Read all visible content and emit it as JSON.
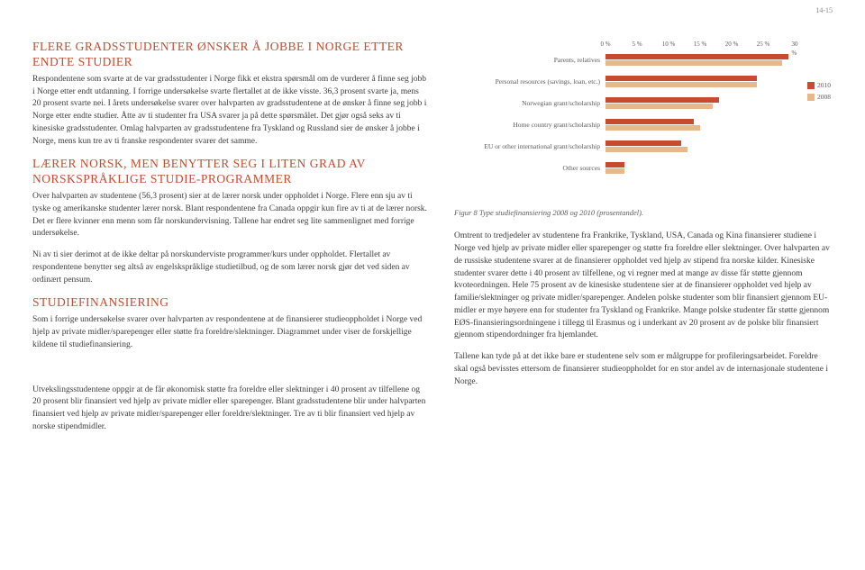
{
  "pageNumber": "14-15",
  "left": {
    "h1": "FLERE GRADSSTUDENTER ØNSKER Å JOBBE I NORGE ETTER ENDTE STUDIER",
    "p1": "Respondentene som svarte at de var gradsstudenter i Norge fikk et ekstra spørsmål om de vurderer å finne seg jobb i Norge etter endt utdanning. I forrige undersøkelse svarte flertallet at de ikke visste. 36,3 prosent svarte ja, mens 20 prosent svarte nei. I årets undersøkelse svarer over halvparten av gradsstudentene at de ønsker å finne seg jobb i Norge etter endte studier. Åtte av ti studenter fra USA svarer ja på dette spørsmålet. Det gjør også seks av ti kinesiske gradsstudenter. Omlag halvparten av gradsstudentene fra Tyskland og Russland sier de ønsker å jobbe i Norge, mens kun tre av ti franske respondenter svarer det samme.",
    "h2": "LÆRER NORSK, MEN BENYTTER SEG I LITEN GRAD AV NORSKSPRÅKLIGE STUDIE-PROGRAMMER",
    "p2": "Over halvparten av studentene (56,3 prosent) sier at de lærer norsk under oppholdet i Norge. Flere enn sju av ti tyske og amerikanske studenter lærer norsk. Blant respondentene fra Canada oppgir kun fire av ti at de lærer norsk. Det er flere kvinner enn menn som får norskundervisning. Tallene har endret seg lite sammenlignet med forrige undersøkelse.",
    "p3": "Ni av ti sier derimot at de ikke deltar på norskunderviste programmer/kurs under oppholdet. Flertallet av respondentene benytter seg altså av engelskspråklige studietilbud, og de som lærer norsk gjør det ved siden av ordinært pensum.",
    "h3": "STUDIEFINANSIERING",
    "p4": "Som i forrige undersøkelse svarer over halvparten av respondentene at de finansierer studieoppholdet i Norge ved hjelp av private midler/sparepenger eller støtte fra foreldre/slektninger. Diagrammet under viser de forskjellige kildene til studiefinansiering.",
    "p5": "Utvekslingsstudentene oppgir at de får økonomisk støtte fra foreldre eller slektninger i 40 prosent av tilfellene og 20 prosent blir finansiert ved hjelp av private midler eller sparepenger. Blant gradsstudentene blir under halvparten finansiert ved hjelp av private midler/sparepenger eller foreldre/slektninger. Tre av ti blir finansiert ved hjelp av norske stipendmidler."
  },
  "chart": {
    "type": "bar",
    "xmax": 30,
    "xtick": 5,
    "xlabels": [
      "0 %",
      "5 %",
      "10 %",
      "15 %",
      "20 %",
      "25 %",
      "30 %"
    ],
    "color2010": "#c94a2e",
    "color2008": "#e8b88a",
    "bgcolor": "#ffffff",
    "categories": [
      {
        "label": "Parents, relatives",
        "v2010": 29,
        "v2008": 28
      },
      {
        "label": "Personal resources (savings, loan, etc.)",
        "v2010": 24,
        "v2008": 24
      },
      {
        "label": "Norwegian grant/scholarship",
        "v2010": 18,
        "v2008": 17
      },
      {
        "label": "Home country grant/scholarship",
        "v2010": 14,
        "v2008": 15
      },
      {
        "label": "EU or other international grant/scholarship",
        "v2010": 12,
        "v2008": 13
      },
      {
        "label": "Other sources",
        "v2010": 3,
        "v2008": 3
      }
    ],
    "legend": [
      {
        "label": "2010",
        "color": "#c94a2e"
      },
      {
        "label": "2008",
        "color": "#e8b88a"
      }
    ],
    "caption": "Figur 8 Type studiefinansiering 2008 og 2010 (prosentandel)."
  },
  "right": {
    "p1": "Omtrent to tredjedeler av studentene fra Frankrike, Tyskland, USA, Canada og Kina finansierer studiene i Norge ved hjelp av private midler eller sparepenger og støtte fra foreldre eller slektninger. Over halvparten av de russiske studentene svarer at de finansierer oppholdet ved hjelp av stipend fra norske kilder. Kinesiske studenter svarer dette i 40 prosent av tilfellene, og vi regner med at mange av disse får støtte gjennom kvoteordningen. Hele 75 prosent av de kinesiske studentene sier at de finansierer oppholdet ved hjelp av familie/slektninger og private midler/sparepenger. Andelen polske studenter som blir finansiert gjennom EU-midler er mye høyere enn for studenter fra Tyskland og Frankrike. Mange polske studenter får støtte gjennom EØS-finansieringsordningene i tillegg til Erasmus og i underkant av 20 prosent av de polske blir finansiert gjennom stipendordninger fra hjemlandet.",
    "p2": "Tallene kan tyde på at det ikke bare er studentene selv som er målgruppe for profileringsarbeidet. Foreldre skal også bevisstes ettersom de finansierer studieoppholdet for en stor andel av de internasjonale studentene i Norge."
  }
}
